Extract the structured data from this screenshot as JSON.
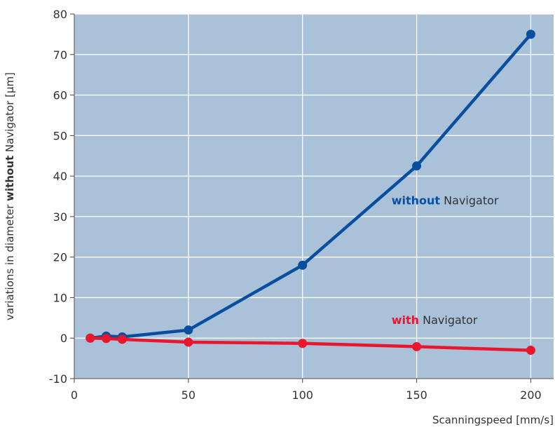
{
  "chart_data": {
    "type": "line",
    "xlabel": "Scanningspeed [mm/s]",
    "ylabel_parts": [
      "variations in diameter ",
      "without",
      " Navigator [µm]"
    ],
    "xlim": [
      0,
      210
    ],
    "ylim": [
      -10,
      80
    ],
    "x_ticks": [
      "0",
      "50",
      "100",
      "150",
      "200"
    ],
    "y_ticks": [
      "-10",
      "0",
      "10",
      "20",
      "30",
      "40",
      "50",
      "60",
      "70",
      "80"
    ],
    "grid": true,
    "series": [
      {
        "name": "without Navigator",
        "color": "#0a4f9e",
        "x": [
          7,
          14,
          21,
          50,
          100,
          150,
          200
        ],
        "y": [
          0.0,
          0.5,
          0.3,
          2.0,
          18.0,
          42.5,
          75.0
        ]
      },
      {
        "name": "with Navigator",
        "color": "#e8172d",
        "x": [
          7,
          14,
          21,
          50,
          100,
          150,
          200
        ],
        "y": [
          0.0,
          -0.1,
          -0.3,
          -1.0,
          -1.3,
          -2.1,
          -3.0
        ]
      }
    ],
    "annotations": [
      {
        "series": 0,
        "bold": "without",
        "rest": " Navigator",
        "x": 139,
        "y": 33
      },
      {
        "series": 1,
        "bold": "with",
        "rest": " Navigator",
        "x": 139,
        "y": 3.5
      }
    ],
    "colors": {
      "plot_bg": "#a9c2da",
      "grid": "#ffffff",
      "axis": "#444444"
    }
  }
}
